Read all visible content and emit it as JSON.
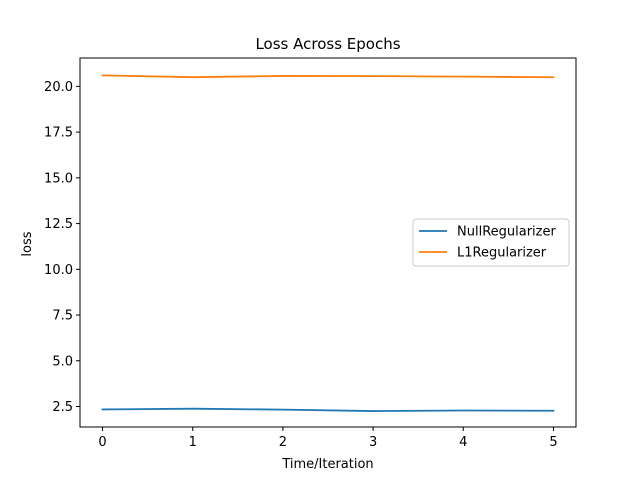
{
  "chart_data": {
    "type": "line",
    "title": "Loss Across Epochs",
    "xlabel": "Time/Iteration",
    "ylabel": "loss",
    "x": [
      0,
      1,
      2,
      3,
      4,
      5
    ],
    "x_ticks": [
      "0",
      "1",
      "2",
      "3",
      "4",
      "5"
    ],
    "y_ticks": [
      "2.5",
      "5.0",
      "7.5",
      "10.0",
      "12.5",
      "15.0",
      "17.5",
      "20.0"
    ],
    "xlim": [
      -0.25,
      5.25
    ],
    "ylim": [
      1.38,
      21.55
    ],
    "grid": false,
    "legend_position": "center-right",
    "series": [
      {
        "name": "NullRegularizer",
        "color": "#1f77b4",
        "values": [
          2.34,
          2.38,
          2.33,
          2.25,
          2.28,
          2.27
        ]
      },
      {
        "name": "L1Regularizer",
        "color": "#ff7f0e",
        "values": [
          20.6,
          20.5,
          20.57,
          20.56,
          20.53,
          20.5
        ]
      }
    ]
  }
}
